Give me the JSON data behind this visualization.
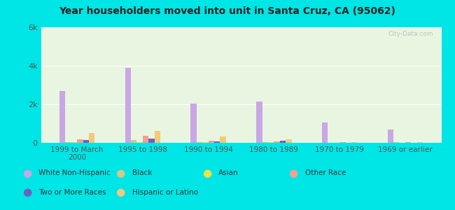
{
  "title": "Year householders moved into unit in Santa Cruz, CA (95062)",
  "categories": [
    "1999 to March\n2000",
    "1995 to 1998",
    "1990 to 1994",
    "1980 to 1989",
    "1970 to 1979",
    "1969 or earlier"
  ],
  "series": {
    "White Non-Hispanic": [
      2700,
      3900,
      2050,
      2150,
      1050,
      700
    ],
    "Black": [
      50,
      150,
      50,
      30,
      10,
      20
    ],
    "Asian": [
      30,
      50,
      20,
      20,
      10,
      10
    ],
    "Other Race": [
      200,
      350,
      120,
      80,
      20,
      20
    ],
    "Two or More Races": [
      150,
      230,
      80,
      120,
      15,
      15
    ],
    "Hispanic or Latino": [
      500,
      620,
      320,
      200,
      20,
      30
    ]
  },
  "colors": {
    "White Non-Hispanic": "#c9a6e4",
    "Black": "#d4c98a",
    "Asian": "#f0e040",
    "Other Race": "#f4a090",
    "Two or More Races": "#7060c0",
    "Hispanic or Latino": "#f5c87a"
  },
  "ylim": [
    0,
    6000
  ],
  "yticks": [
    0,
    2000,
    4000,
    6000
  ],
  "ytick_labels": [
    "0",
    "2k",
    "4k",
    "6k"
  ],
  "background_outer": "#00e5e5",
  "background_plot_top": "#e0f0f0",
  "background_plot_bot": "#e8f5e0",
  "watermark": "City-Data.com",
  "legend_row1": [
    "White Non-Hispanic",
    "Black",
    "Asian",
    "Other Race"
  ],
  "legend_row2": [
    "Two or More Races",
    "Hispanic or Latino"
  ]
}
